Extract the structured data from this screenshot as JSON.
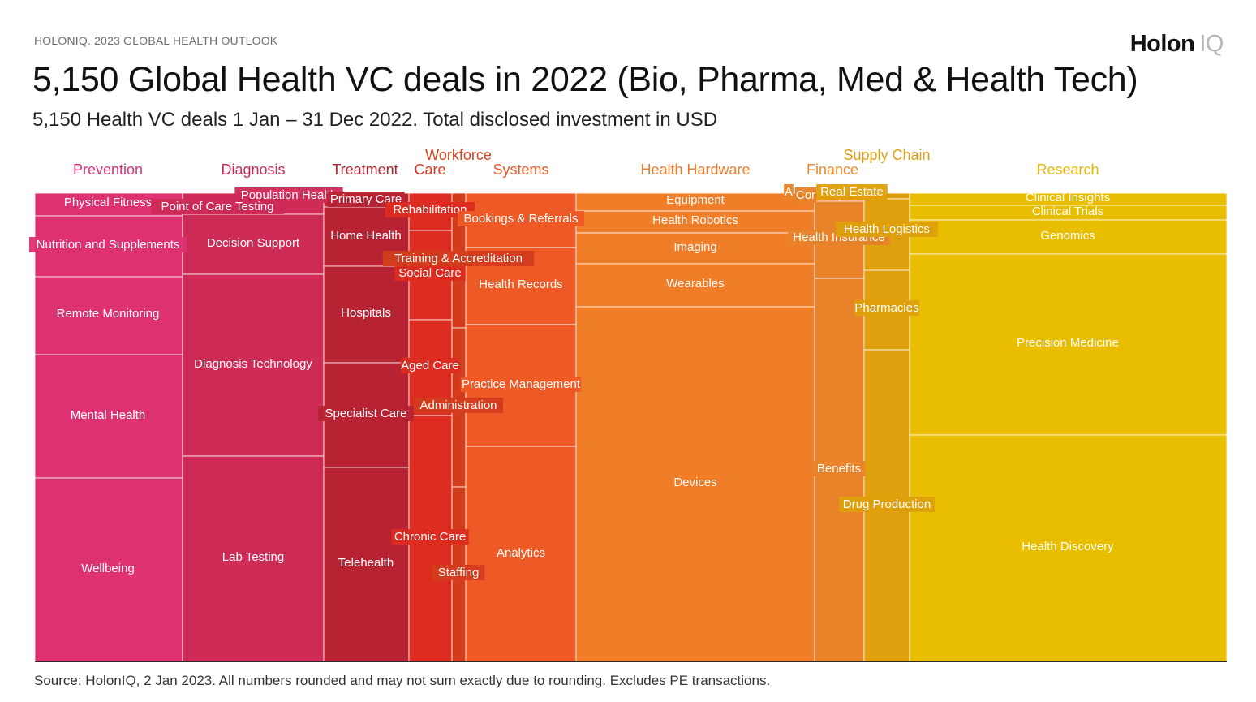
{
  "header": {
    "eyebrow": "HOLONIQ. 2023 GLOBAL HEALTH OUTLOOK",
    "logo_main": "Holon",
    "logo_suffix": "IQ",
    "title": "5,150 Global Health VC deals in 2022 (Bio, Pharma, Med & Health Tech)",
    "subtitle": "5,150 Health VC deals 1 Jan – 31 Dec 2022. Total disclosed investment in USD"
  },
  "footer": {
    "source": "Source: HolonIQ, 2 Jan 2023. All numbers rounded and may not sum exactly due to rounding. Excludes PE transactions."
  },
  "chart_data": {
    "type": "treemap",
    "note": "Values are relative area shares (% of total chart area) estimated from tile sizes.",
    "categories": [
      {
        "name": "Prevention",
        "color": "#de3172",
        "children": [
          {
            "name": "Physical Fitness",
            "value": 0.6
          },
          {
            "name": "Nutrition and Supplements",
            "value": 1.8
          },
          {
            "name": "Remote Monitoring",
            "value": 2.1
          },
          {
            "name": "Mental Health",
            "value": 3.4
          },
          {
            "name": "Wellbeing",
            "value": 5.0
          }
        ]
      },
      {
        "name": "Diagnosis",
        "color": "#ce2b57",
        "children": [
          {
            "name": "Population Health",
            "value": 0.1
          },
          {
            "name": "Point of Care Testing",
            "value": 0.5
          },
          {
            "name": "Decision Support",
            "value": 1.6
          },
          {
            "name": "Diagnosis Technology",
            "value": 6.6
          },
          {
            "name": "Lab Testing",
            "value": 5.2
          }
        ]
      },
      {
        "name": "Treatment",
        "color": "#b72333",
        "children": [
          {
            "name": "Primary Care",
            "value": 0.2
          },
          {
            "name": "Home Health",
            "value": 1.1
          },
          {
            "name": "Hospitals",
            "value": 1.5
          },
          {
            "name": "Specialist Care",
            "value": 1.7
          },
          {
            "name": "Telehealth",
            "value": 3.0
          }
        ]
      },
      {
        "name": "Care",
        "color": "#dd2c20",
        "children": [
          {
            "name": "Rehabilitation",
            "value": 0.6
          },
          {
            "name": "Social Care",
            "value": 0.7
          },
          {
            "name": "Aged Care",
            "value": 1.4
          },
          {
            "name": "Chronic Care",
            "value": 1.6
          }
        ]
      },
      {
        "name": "Workforce",
        "color": "#d23c1d",
        "children": [
          {
            "name": "Training & Accreditation",
            "value": 0.4
          },
          {
            "name": "Administration",
            "value": 0.5
          },
          {
            "name": "Staffing",
            "value": 0.6
          }
        ]
      },
      {
        "name": "Systems",
        "color": "#ee5a26",
        "children": [
          {
            "name": "Bookings & Referrals",
            "value": 1.4
          },
          {
            "name": "Health Records",
            "value": 2.0
          },
          {
            "name": "Practice Management",
            "value": 3.2
          },
          {
            "name": "Analytics",
            "value": 5.5
          }
        ]
      },
      {
        "name": "Health Hardware",
        "color": "#f07d28",
        "children": [
          {
            "name": "Equipment",
            "value": 0.8
          },
          {
            "name": "Health Robotics",
            "value": 0.9
          },
          {
            "name": "Imaging",
            "value": 1.4
          },
          {
            "name": "Wearables",
            "value": 1.9
          },
          {
            "name": "Devices",
            "value": 15.7
          }
        ]
      },
      {
        "name": "Finance",
        "color": "#e8832a",
        "children": [
          {
            "name": "A",
            "value": 0.1
          },
          {
            "name": "Cor",
            "value": 0.1
          },
          {
            "name": "Health Insurance",
            "value": 1.3
          },
          {
            "name": "Benefits",
            "value": 3.4
          }
        ]
      },
      {
        "name": "Supply Chain",
        "color": "#dfa00d",
        "children": [
          {
            "name": "Real Estate",
            "value": 0.1
          },
          {
            "name": "Health Logistics",
            "value": 0.8
          },
          {
            "name": "Pharmacies",
            "value": 0.8
          },
          {
            "name": "Drug Production",
            "value": 3.1
          }
        ]
      },
      {
        "name": "Research",
        "color": "#e9be01",
        "children": [
          {
            "name": "Clinical Insights",
            "value": 0.4
          },
          {
            "name": "Clinical Trials",
            "value": 0.5
          },
          {
            "name": "Genomics",
            "value": 1.1
          },
          {
            "name": "Precision Medicine",
            "value": 7.5
          },
          {
            "name": "Health Discovery",
            "value": 7.0
          }
        ]
      }
    ]
  }
}
